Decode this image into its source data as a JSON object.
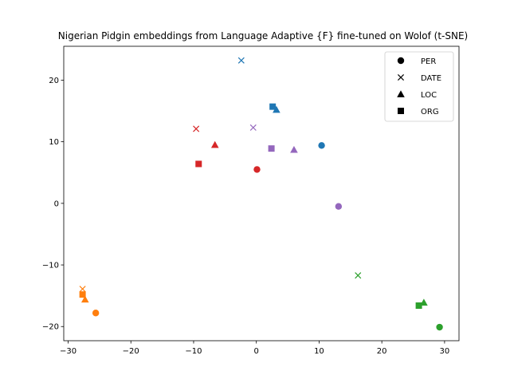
{
  "chart_data": {
    "type": "scatter",
    "title": "Nigerian Pidgin embeddings from Language Adaptive {F} fine-tuned on Wolof (t-SNE)",
    "xlabel": "",
    "ylabel": "",
    "xlim": [
      -30.7,
      32.3
    ],
    "ylim": [
      -22.3,
      25.5
    ],
    "xticks": [
      -30,
      -20,
      -10,
      0,
      10,
      20,
      30
    ],
    "xtick_labels": [
      "−30",
      "−20",
      "−10",
      "0",
      "10",
      "20",
      "30"
    ],
    "yticks": [
      -20,
      -10,
      0,
      10,
      20
    ],
    "ytick_labels": [
      "−20",
      "−10",
      "0",
      "10",
      "20"
    ],
    "grid": false,
    "legend": {
      "placement": "top-right",
      "entries": [
        {
          "label": "PER",
          "marker": "circle"
        },
        {
          "label": "DATE",
          "marker": "x"
        },
        {
          "label": "LOC",
          "marker": "triangle"
        },
        {
          "label": "ORG",
          "marker": "square"
        }
      ]
    },
    "series": [
      {
        "color": "#1f77b4",
        "points": [
          {
            "x": 10.4,
            "y": 9.4,
            "marker": "circle"
          },
          {
            "x": -2.4,
            "y": 23.2,
            "marker": "x"
          },
          {
            "x": 3.2,
            "y": 15.2,
            "marker": "triangle"
          },
          {
            "x": 2.6,
            "y": 15.7,
            "marker": "square"
          }
        ]
      },
      {
        "color": "#ff7f0e",
        "points": [
          {
            "x": -25.6,
            "y": -17.8,
            "marker": "circle"
          },
          {
            "x": -27.7,
            "y": -13.9,
            "marker": "x"
          },
          {
            "x": -27.3,
            "y": -15.6,
            "marker": "triangle"
          },
          {
            "x": -27.7,
            "y": -14.8,
            "marker": "square"
          }
        ]
      },
      {
        "color": "#2ca02c",
        "points": [
          {
            "x": 29.2,
            "y": -20.1,
            "marker": "circle"
          },
          {
            "x": 16.2,
            "y": -11.7,
            "marker": "x"
          },
          {
            "x": 26.7,
            "y": -16.1,
            "marker": "triangle"
          },
          {
            "x": 25.9,
            "y": -16.6,
            "marker": "square"
          }
        ]
      },
      {
        "color": "#d62728",
        "points": [
          {
            "x": 0.1,
            "y": 5.5,
            "marker": "circle"
          },
          {
            "x": -9.6,
            "y": 12.1,
            "marker": "x"
          },
          {
            "x": -6.6,
            "y": 9.5,
            "marker": "triangle"
          },
          {
            "x": -9.2,
            "y": 6.4,
            "marker": "square"
          }
        ]
      },
      {
        "color": "#9467bd",
        "points": [
          {
            "x": 13.1,
            "y": -0.5,
            "marker": "circle"
          },
          {
            "x": -0.5,
            "y": 12.3,
            "marker": "x"
          },
          {
            "x": 6.0,
            "y": 8.7,
            "marker": "triangle"
          },
          {
            "x": 2.4,
            "y": 8.9,
            "marker": "square"
          }
        ]
      }
    ]
  }
}
